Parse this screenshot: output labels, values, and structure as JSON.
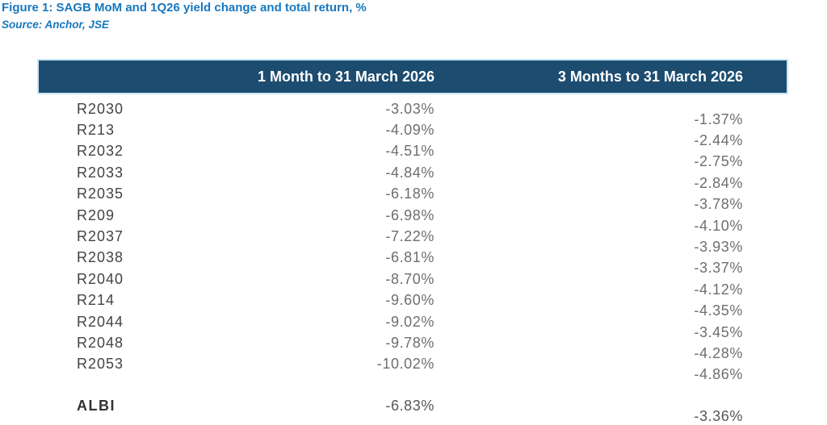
{
  "figure": {
    "title": "Figure 1: SAGB MoM and 1Q26 yield change and total return, %",
    "source": "Source: Anchor, JSE"
  },
  "colors": {
    "title_blue": "#1878BE",
    "header_bg": "#1C4C70",
    "header_border": "#C9E6F7",
    "header_text": "#FFFFFF",
    "label_text": "#434343",
    "value_text": "#6E6E6E",
    "summary_label_text": "#333333",
    "summary_value_text": "#575757"
  },
  "table": {
    "headers": {
      "one_month": "1 Month to 31 March 2026",
      "three_months": "3 Months to 31 March 2026"
    },
    "rows": [
      {
        "label": "R2030",
        "one_month": "-3.03%",
        "three_months": "-1.37%"
      },
      {
        "label": "R213",
        "one_month": "-4.09%",
        "three_months": "-2.44%"
      },
      {
        "label": "R2032",
        "one_month": "-4.51%",
        "three_months": "-2.75%"
      },
      {
        "label": "R2033",
        "one_month": "-4.84%",
        "three_months": "-2.84%"
      },
      {
        "label": "R2035",
        "one_month": "-6.18%",
        "three_months": "-3.78%"
      },
      {
        "label": "R209",
        "one_month": "-6.98%",
        "three_months": "-4.10%"
      },
      {
        "label": "R2037",
        "one_month": "-7.22%",
        "three_months": "-3.93%"
      },
      {
        "label": "R2038",
        "one_month": "-6.81%",
        "three_months": "-3.37%"
      },
      {
        "label": "R2040",
        "one_month": "-8.70%",
        "three_months": "-4.12%"
      },
      {
        "label": "R214",
        "one_month": "-9.60%",
        "three_months": "-4.35%"
      },
      {
        "label": "R2044",
        "one_month": "-9.02%",
        "three_months": "-3.45%"
      },
      {
        "label": "R2048",
        "one_month": "-9.78%",
        "three_months": "-4.28%"
      },
      {
        "label": "R2053",
        "one_month": "-10.02%",
        "three_months": "-4.86%"
      }
    ],
    "summary_row": {
      "label": "ALBI",
      "one_month": "-6.83%",
      "three_months": "-3.36%"
    }
  },
  "chart_data": {
    "type": "table",
    "title": "Figure 1: SAGB MoM and 1Q26 yield change and total return, %",
    "source": "Source: Anchor, JSE",
    "categories": [
      "R2030",
      "R213",
      "R2032",
      "R2033",
      "R2035",
      "R209",
      "R2037",
      "R2038",
      "R2040",
      "R214",
      "R2044",
      "R2048",
      "R2053",
      "ALBI"
    ],
    "series": [
      {
        "name": "1 Month to 31 March 2026",
        "values": [
          -3.03,
          -4.09,
          -4.51,
          -4.84,
          -6.18,
          -6.98,
          -7.22,
          -6.81,
          -8.7,
          -9.6,
          -9.02,
          -9.78,
          -10.02,
          -6.83
        ]
      },
      {
        "name": "3 Months to 31 March 2026",
        "values": [
          -1.37,
          -2.44,
          -2.75,
          -2.84,
          -3.78,
          -4.1,
          -3.93,
          -3.37,
          -4.12,
          -4.35,
          -3.45,
          -4.28,
          -4.86,
          -3.36
        ]
      }
    ],
    "unit": "%"
  }
}
